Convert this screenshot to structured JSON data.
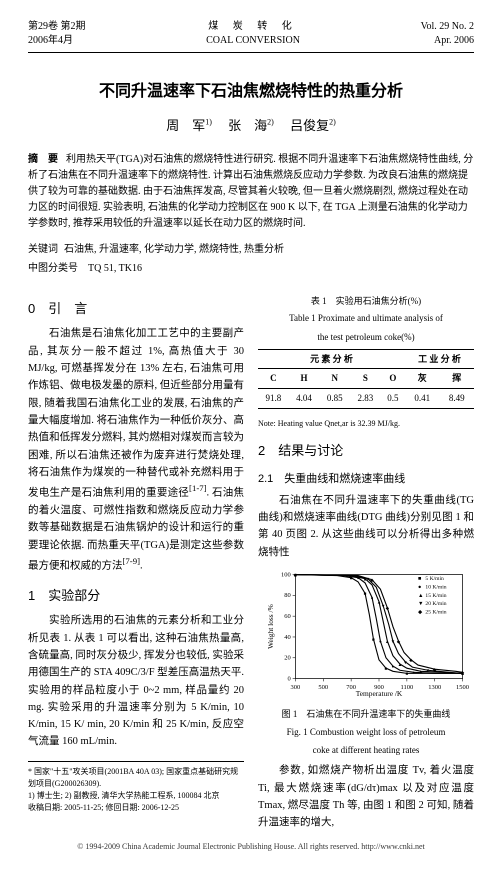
{
  "header": {
    "left_line1": "第29卷 第2期",
    "left_line2": "2006年4月",
    "center_cn": "煤 炭 转 化",
    "center_en": "COAL CONVERSION",
    "right_line1": "Vol. 29  No. 2",
    "right_line2": "Apr. 2006"
  },
  "title": "不同升温速率下石油焦燃烧特性的热重分析",
  "authors": {
    "a1": "周　军",
    "a1_sup": "1)",
    "a2": "张　海",
    "a2_sup": "2)",
    "a3": "吕俊复",
    "a3_sup": "2)"
  },
  "abstract": {
    "label": "摘　要",
    "text": "利用热天平(TGA)对石油焦的燃烧特性进行研究. 根据不同升温速率下石油焦燃烧特性曲线, 分析了石油焦在不同升温速率下的燃烧特性. 计算出石油焦燃烧反应动力学参数. 为改良石油焦的燃烧提供了较为可靠的基础数据. 由于石油焦挥发高, 尽管其着火较晚, 但一旦着火燃烧剧烈, 燃烧过程处在动力区的时间很短. 实验表明, 石油焦的化学动力控制区在 900 K 以下, 在 TGA 上测量石油焦的化学动力学参数时, 推荐采用较低的升温速率以延长在动力区的燃烧时间."
  },
  "keywords": {
    "label": "关键词",
    "text": "石油焦, 升温速率, 化学动力学, 燃烧特性, 热重分析"
  },
  "classno": {
    "label": "中图分类号",
    "text": "TQ 51, TK16"
  },
  "section0": {
    "title": "0　引　言",
    "p1": "石油焦是石油焦化加工工艺中的主要副产品, 其灰分一般不超过 1%, 高热值大于 30 MJ/kg, 可燃基挥发分在 13% 左右, 石油焦可用作炼铝、做电极发墨的原料, 但近些部分用量有限, 随着我国石油焦化工业的发展, 石油焦的产量大幅度增加. 将石油焦作为一种低价灰分、高热值和低挥发分燃料, 其灼燃相对煤炭而言较为困难, 所以石油焦还被作为废弃进行焚烧处理, 将石油焦作为煤炭的一种替代或补充燃料用于发电生产是石油焦利用的重要途径",
    "p1_cite": "[1-7]",
    "p1_cont": ". 石油焦的着火温度、可燃性指数和燃烧反应动力学参数等基础数据是石油焦锅炉的设计和运行的重要理论依据. 而热重天平(TGA)是测定这些参数最方便和权威的方法",
    "p1_cite2": "[7-9]",
    "p1_end": "."
  },
  "section1": {
    "title": "1　实验部分",
    "p1": "实验所选用的石油焦的元素分析和工业分析见表 1. 从表 1 可以看出, 这种石油焦热量高, 含硫量高, 同时灰分极少, 挥发分也较低, 实验采用德国生产的 STA 409C/3/F 型差压高温热天平. 实验用的样品粒度小于 0~2 mm, 样品量约 20 mg. 实验采用的升温速率分别为 5 K/min, 10 K/min, 15 K/ min, 20 K/min 和 25 K/min, 反应空气流量 160 mL/min."
  },
  "table1": {
    "caption_cn": "表 1　实验用石油焦分析(%)",
    "caption_en1": "Table 1  Proximate and ultimate analysis of",
    "caption_en2": "the test petroleum coke(%)",
    "head_groups": [
      "元 素 分 析",
      "工 业 分 析"
    ],
    "cols": [
      "C",
      "H",
      "N",
      "S",
      "O",
      "灰",
      "挥"
    ],
    "row": [
      "91.8",
      "4.04",
      "0.85",
      "2.83",
      "0.5",
      "0.41",
      "8.49"
    ],
    "note": "Note: Heating value Qnet,ar is 32.39 MJ/kg."
  },
  "section2": {
    "title": "2　结果与讨论",
    "sub21_title": "2.1　失重曲线和燃烧速率曲线",
    "p21": "石油焦在不同升温速率下的失重曲线(TG 曲线)和燃烧速率曲线(DTG 曲线)分别见图 1 和第 40 页图 2. 从这些曲线可以分析得出多种燃烧特性"
  },
  "chart": {
    "type": "line",
    "title": "",
    "xlabel": "Temperature /K",
    "ylabel": "Weight loss /%",
    "xlim": [
      300,
      1500
    ],
    "ylim": [
      0,
      100
    ],
    "xticks": [
      300,
      500,
      700,
      900,
      1100,
      1300,
      1500
    ],
    "yticks": [
      0,
      20,
      40,
      60,
      80,
      100
    ],
    "label_fontsize": 8,
    "tick_fontsize": 7,
    "background_color": "#ffffff",
    "axis_color": "#000000",
    "line_width": 1.2,
    "legend_items": [
      "5 K/min",
      "10 K/min",
      "15 K/min",
      "20 K/min",
      "25 K/min"
    ],
    "legend_markers": [
      "■",
      "●",
      "▲",
      "▼",
      "◆"
    ],
    "legend_pos": "top-right",
    "series": [
      {
        "name": "5 K/min",
        "marker": "square",
        "color": "#000000",
        "x": [
          300,
          600,
          700,
          750,
          800,
          830,
          860,
          900,
          950,
          1000,
          1100,
          1300,
          1500
        ],
        "y": [
          100,
          99,
          97,
          93,
          82,
          62,
          38,
          18,
          10,
          7,
          5,
          5,
          5
        ]
      },
      {
        "name": "10 K/min",
        "marker": "circle",
        "color": "#000000",
        "x": [
          300,
          650,
          750,
          800,
          850,
          880,
          910,
          950,
          1000,
          1050,
          1150,
          1300,
          1500
        ],
        "y": [
          100,
          99,
          97,
          92,
          78,
          58,
          36,
          20,
          12,
          8,
          6,
          5,
          5
        ]
      },
      {
        "name": "15 K/min",
        "marker": "triangle-up",
        "color": "#000000",
        "x": [
          300,
          700,
          800,
          850,
          900,
          930,
          960,
          1000,
          1050,
          1100,
          1200,
          1350,
          1500
        ],
        "y": [
          100,
          99,
          96,
          90,
          74,
          55,
          36,
          22,
          14,
          10,
          7,
          6,
          5
        ]
      },
      {
        "name": "20 K/min",
        "marker": "triangle-down",
        "color": "#000000",
        "x": [
          300,
          720,
          820,
          880,
          930,
          970,
          1000,
          1040,
          1090,
          1140,
          1250,
          1400,
          1500
        ],
        "y": [
          100,
          99,
          96,
          88,
          70,
          52,
          36,
          24,
          16,
          11,
          8,
          6,
          5
        ]
      },
      {
        "name": "25 K/min",
        "marker": "diamond",
        "color": "#000000",
        "x": [
          300,
          750,
          850,
          910,
          960,
          1000,
          1040,
          1080,
          1130,
          1180,
          1300,
          1450,
          1500
        ],
        "y": [
          100,
          99,
          95,
          86,
          68,
          50,
          36,
          25,
          18,
          13,
          9,
          7,
          6
        ]
      }
    ]
  },
  "fig1": {
    "cap_cn": "图 1　石油焦在不同升温速率下的失重曲线",
    "cap_en1": "Fig. 1  Combustion weight loss of petroleum",
    "cap_en2": "coke at different heating rates"
  },
  "p_after_fig": "参数, 如燃烧产物析出温度 Tv, 着火温度 Ti, 最大燃烧速率(dG/dτ)max 以及对应温度 Tmax, 燃尽温度 Th 等, 由图 1 和图 2 可知, 随着升温速率的增大,",
  "footnotes": {
    "f1": "国家\"十五\"攻关项目(2001BA 40A 03); 国家重点基础研究规划项目(G200026309).",
    "f2": "1) 博士生; 2) 副教授, 清华大学热能工程系, 100084  北京",
    "f3": "收稿日期: 2005-11-25; 修回日期: 2006-12-25"
  },
  "publisher": "© 1994-2009 China Academic Journal Electronic Publishing House. All rights reserved.    http://www.cnki.net"
}
